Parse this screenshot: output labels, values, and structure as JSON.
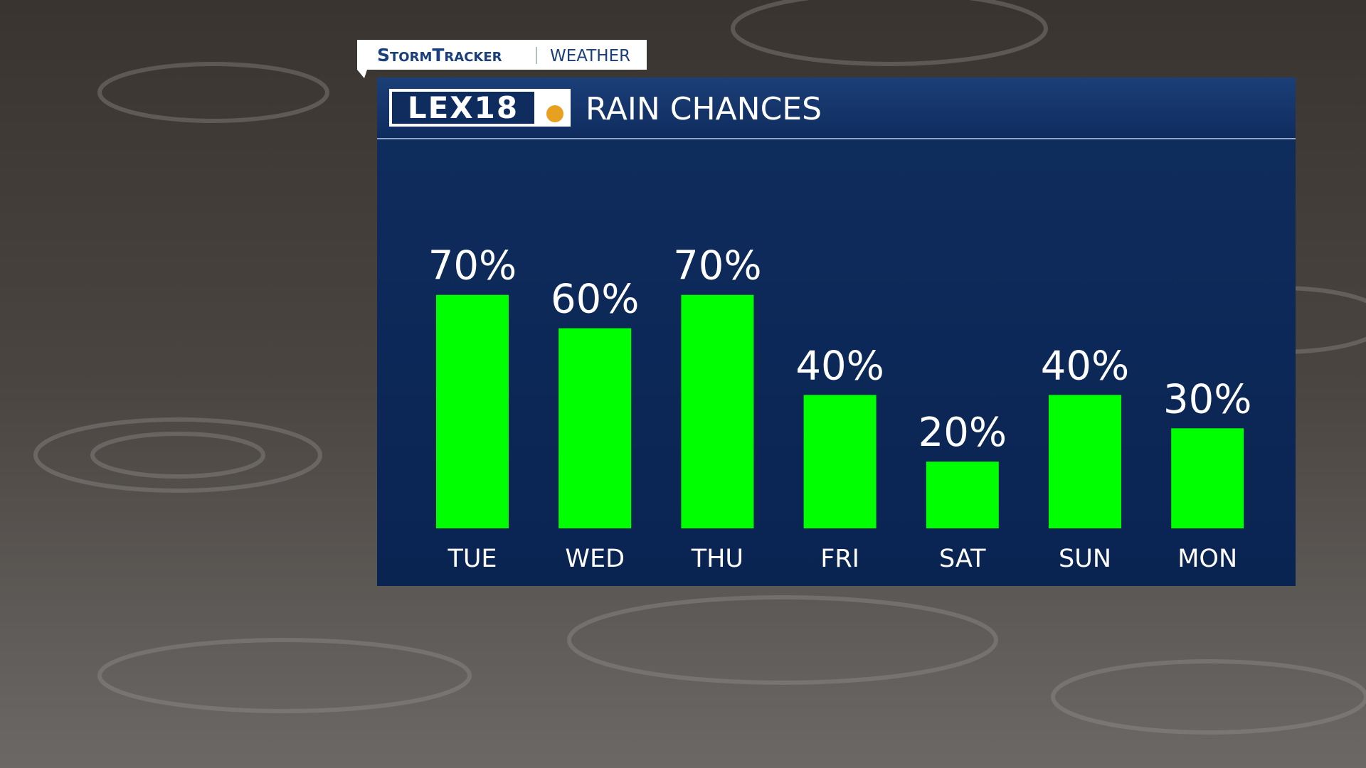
{
  "header": {
    "brand": "StormTracker",
    "section": "WEATHER",
    "logo": "LEX18"
  },
  "chart_data": {
    "type": "bar",
    "title": "RAIN CHANCES",
    "categories": [
      "TUE",
      "WED",
      "THU",
      "FRI",
      "SAT",
      "SUN",
      "MON"
    ],
    "values": [
      70,
      60,
      70,
      40,
      20,
      40,
      30
    ],
    "value_labels": [
      "70%",
      "60%",
      "70%",
      "40%",
      "20%",
      "40%",
      "30%"
    ],
    "color": "#00ff00"
  }
}
